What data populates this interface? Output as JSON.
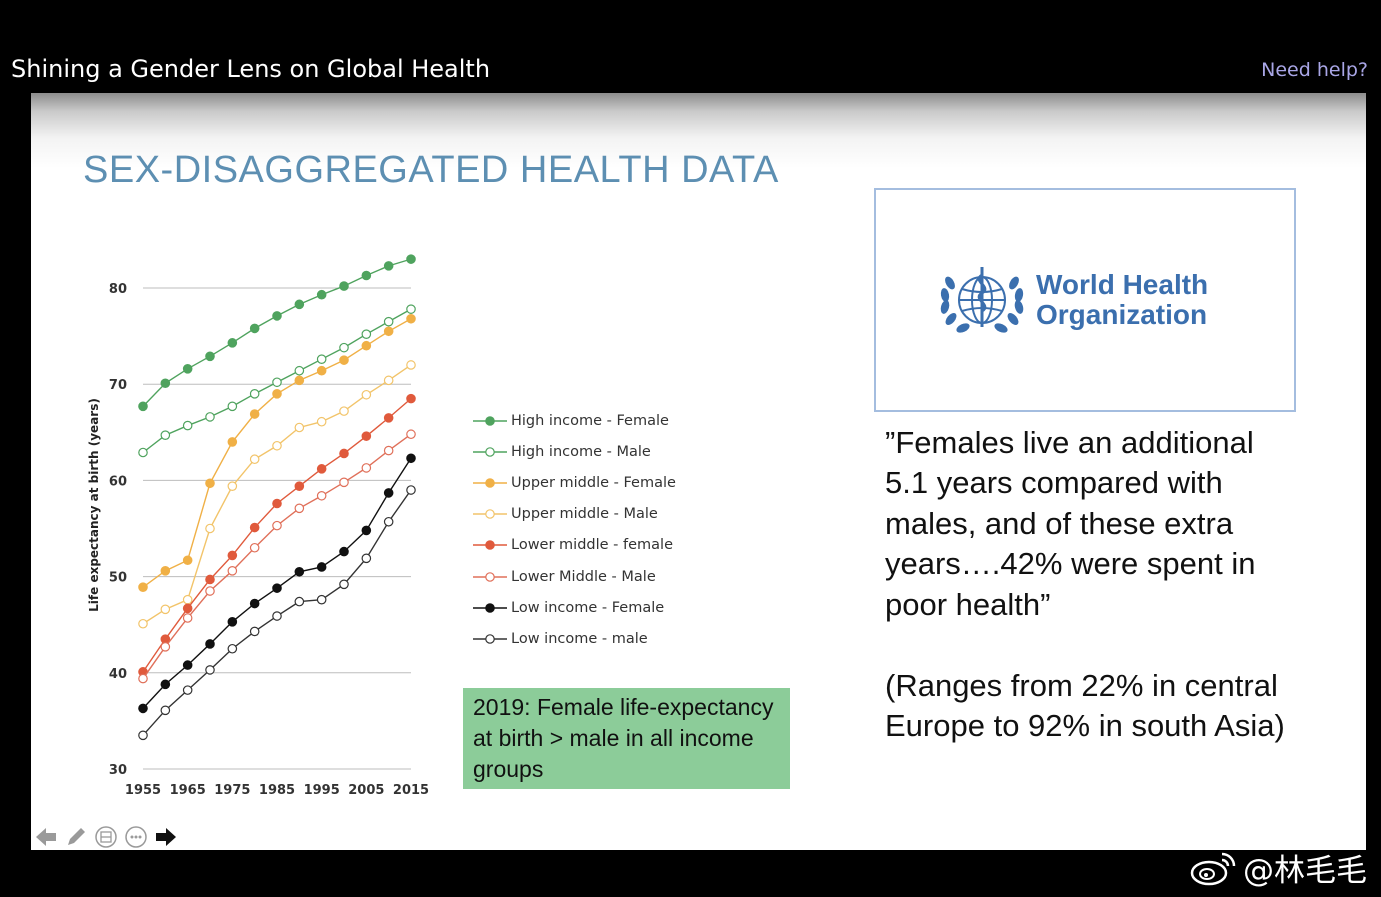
{
  "window": {
    "title": "Shining a Gender Lens on Global Health",
    "help_link": "Need help?"
  },
  "slide": {
    "title": "SEX-DISAGGREGATED HEALTH DATA",
    "callout": "2019: Female life-expectancy at birth > male in all income groups",
    "who_logo": {
      "icon": "who-emblem-icon",
      "name_line1": "World Health",
      "name_line2": "Organization",
      "color": "#3b6fae"
    },
    "quote": "”Females live an additional\n5.1 years compared with\nmales, and of these extra\nyears….42% were spent in\npoor health”",
    "range_note": "(Ranges from 22% in central\nEurope to 92% in south Asia)"
  },
  "controls": [
    {
      "name": "previous-slide-icon",
      "icon": "arrow-left-icon"
    },
    {
      "name": "pen-tool-icon",
      "icon": "pencil-icon"
    },
    {
      "name": "slides-overview-icon",
      "icon": "grid-circle-icon"
    },
    {
      "name": "more-options-icon",
      "icon": "ellipsis-circle-icon"
    },
    {
      "name": "next-slide-icon",
      "icon": "arrow-right-icon"
    }
  ],
  "watermark": {
    "icon": "weibo-logo-icon",
    "text": "@林毛毛"
  },
  "chart_data": {
    "type": "line",
    "ylabel": "Life expectancy at birth (years)",
    "xlabel": "",
    "x": [
      1955,
      1960,
      1965,
      1970,
      1975,
      1980,
      1985,
      1990,
      1995,
      2000,
      2005,
      2010,
      2015
    ],
    "x_tick_labels": [
      "1955",
      "1965",
      "1975",
      "1985",
      "1995",
      "2005",
      "2015"
    ],
    "y_ticks": [
      30,
      40,
      50,
      60,
      70,
      80
    ],
    "ylim": [
      30,
      83
    ],
    "grid": true,
    "legend_position": "right",
    "series": [
      {
        "name": "High income - Female",
        "color": "#4fa35e",
        "filled": true,
        "values": [
          67.7,
          70.1,
          71.6,
          72.9,
          74.3,
          75.8,
          77.1,
          78.3,
          79.3,
          80.2,
          81.3,
          82.3,
          83.0
        ]
      },
      {
        "name": "High income - Male",
        "color": "#4fa35e",
        "filled": false,
        "values": [
          62.9,
          64.7,
          65.7,
          66.6,
          67.7,
          69.0,
          70.2,
          71.4,
          72.6,
          73.8,
          75.2,
          76.5,
          77.8
        ]
      },
      {
        "name": "Upper middle - Female",
        "color": "#f0b046",
        "filled": true,
        "values": [
          48.9,
          50.6,
          51.7,
          59.7,
          64.0,
          66.9,
          69.0,
          70.4,
          71.4,
          72.5,
          74.0,
          75.5,
          76.8
        ]
      },
      {
        "name": "Upper middle - Male",
        "color": "#f2c46a",
        "filled": false,
        "values": [
          45.1,
          46.6,
          47.6,
          55.0,
          59.4,
          62.2,
          63.6,
          65.5,
          66.1,
          67.2,
          68.9,
          70.4,
          72.0
        ]
      },
      {
        "name": "Lower middle - female",
        "color": "#e05a3c",
        "filled": true,
        "values": [
          40.1,
          43.5,
          46.7,
          49.7,
          52.2,
          55.1,
          57.6,
          59.4,
          61.2,
          62.8,
          64.6,
          66.5,
          68.5
        ]
      },
      {
        "name": "Lower Middle - Male",
        "color": "#e0705a",
        "filled": false,
        "values": [
          39.4,
          42.7,
          45.7,
          48.5,
          50.6,
          53.0,
          55.3,
          57.1,
          58.4,
          59.8,
          61.3,
          63.1,
          64.8
        ]
      },
      {
        "name": "Low income - Female",
        "color": "#111111",
        "filled": true,
        "values": [
          36.3,
          38.8,
          40.8,
          43.0,
          45.3,
          47.2,
          48.8,
          50.5,
          51.0,
          52.6,
          54.8,
          58.7,
          62.3
        ]
      },
      {
        "name": "Low income - male",
        "color": "#333333",
        "filled": false,
        "values": [
          33.5,
          36.1,
          38.2,
          40.3,
          42.5,
          44.3,
          45.9,
          47.4,
          47.6,
          49.2,
          51.9,
          55.7,
          59.0
        ]
      }
    ]
  }
}
